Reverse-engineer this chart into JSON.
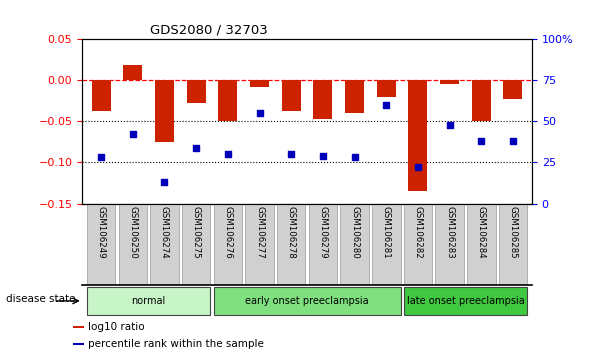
{
  "title": "GDS2080 / 32703",
  "samples": [
    "GSM106249",
    "GSM106250",
    "GSM106274",
    "GSM106275",
    "GSM106276",
    "GSM106277",
    "GSM106278",
    "GSM106279",
    "GSM106280",
    "GSM106281",
    "GSM106282",
    "GSM106283",
    "GSM106284",
    "GSM106285"
  ],
  "log10_ratio": [
    -0.038,
    0.018,
    -0.075,
    -0.028,
    -0.05,
    -0.008,
    -0.038,
    -0.047,
    -0.04,
    -0.02,
    -0.135,
    -0.005,
    -0.05,
    -0.023
  ],
  "percentile_rank": [
    28,
    42,
    13,
    34,
    30,
    55,
    30,
    29,
    28,
    60,
    22,
    48,
    38,
    38
  ],
  "groups": [
    {
      "label": "normal",
      "start": 0,
      "end": 4,
      "color": "#c8f5c8"
    },
    {
      "label": "early onset preeclampsia",
      "start": 4,
      "end": 10,
      "color": "#80e080"
    },
    {
      "label": "late onset preeclampsia",
      "start": 10,
      "end": 14,
      "color": "#40c840"
    }
  ],
  "bar_color": "#cc2200",
  "dot_color": "#0000bb",
  "left_ylim": [
    -0.15,
    0.05
  ],
  "right_ylim": [
    0,
    100
  ],
  "left_yticks": [
    -0.15,
    -0.1,
    -0.05,
    0.0,
    0.05
  ],
  "right_yticks": [
    0,
    25,
    50,
    75,
    100
  ],
  "right_yticklabels": [
    "0",
    "25",
    "50",
    "75",
    "100%"
  ],
  "dotted_lines": [
    -0.05,
    -0.1
  ],
  "bg_color": "#ffffff",
  "legend_items": [
    {
      "label": "log10 ratio",
      "color": "#cc2200"
    },
    {
      "label": "percentile rank within the sample",
      "color": "#0000bb"
    }
  ],
  "label_area_color": "#d0d0d0",
  "disease_state_label": "disease state"
}
